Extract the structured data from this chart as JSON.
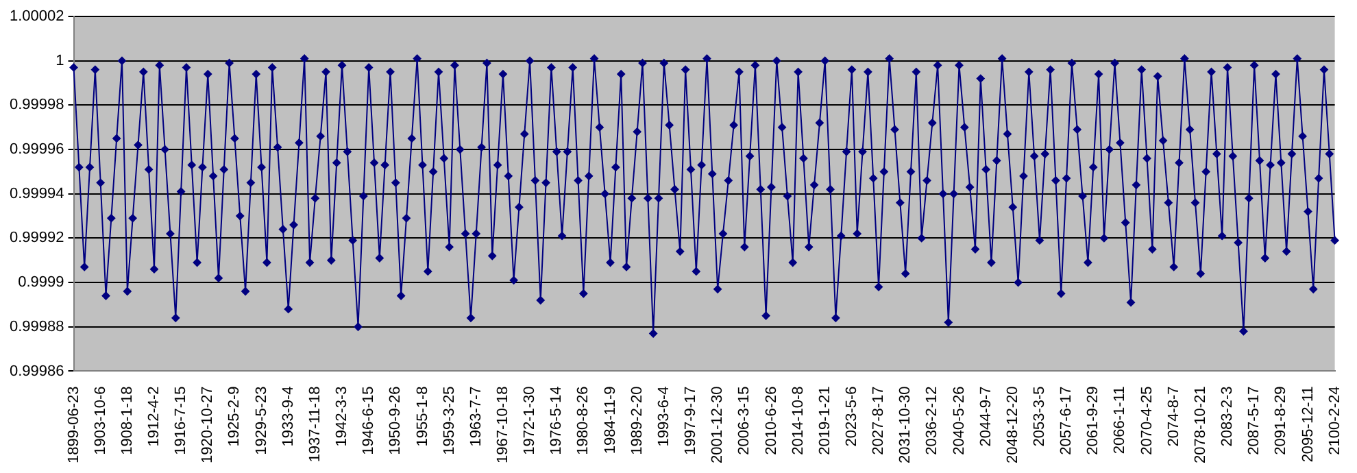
{
  "chart_data": {
    "type": "line",
    "categories": [
      "1899-06-23",
      null,
      null,
      null,
      null,
      "1903-10-6",
      null,
      null,
      null,
      null,
      "1908-1-18",
      null,
      null,
      null,
      null,
      "1912-4-2",
      null,
      null,
      null,
      null,
      "1916-7-15",
      null,
      null,
      null,
      null,
      "1920-10-27",
      null,
      null,
      null,
      null,
      "1925-2-9",
      null,
      null,
      null,
      null,
      "1929-5-23",
      null,
      null,
      null,
      null,
      "1933-9-4",
      null,
      null,
      null,
      null,
      "1937-11-18",
      null,
      null,
      null,
      null,
      "1942-3-3",
      null,
      null,
      null,
      null,
      "1946-6-15",
      null,
      null,
      null,
      null,
      "1950-9-26",
      null,
      null,
      null,
      null,
      "1955-1-8",
      null,
      null,
      null,
      null,
      "1959-3-25",
      null,
      null,
      null,
      null,
      "1963-7-7",
      null,
      null,
      null,
      null,
      "1967-10-18",
      null,
      null,
      null,
      null,
      "1972-1-30",
      null,
      null,
      null,
      null,
      "1976-5-14",
      null,
      null,
      null,
      null,
      "1980-8-26",
      null,
      null,
      null,
      null,
      "1984-11-9",
      null,
      null,
      null,
      null,
      "1989-2-20",
      null,
      null,
      null,
      null,
      "1993-6-4",
      null,
      null,
      null,
      null,
      "1997-9-17",
      null,
      null,
      null,
      null,
      "2001-12-30",
      null,
      null,
      null,
      null,
      "2006-3-15",
      null,
      null,
      null,
      null,
      "2010-6-26",
      null,
      null,
      null,
      null,
      "2014-10-8",
      null,
      null,
      null,
      null,
      "2019-1-21",
      null,
      null,
      null,
      null,
      "2023-5-6",
      null,
      null,
      null,
      null,
      "2027-8-17",
      null,
      null,
      null,
      null,
      "2031-10-30",
      null,
      null,
      null,
      null,
      "2036-2-12",
      null,
      null,
      null,
      null,
      "2040-5-26",
      null,
      null,
      null,
      null,
      "2044-9-7",
      null,
      null,
      null,
      null,
      "2048-12-20",
      null,
      null,
      null,
      null,
      "2053-3-5",
      null,
      null,
      null,
      null,
      "2057-6-17",
      null,
      null,
      null,
      null,
      "2061-9-29",
      null,
      null,
      null,
      null,
      "2066-1-11",
      null,
      null,
      null,
      null,
      "2070-4-25",
      null,
      null,
      null,
      null,
      "2074-8-7",
      null,
      null,
      null,
      null,
      "2078-10-21",
      null,
      null,
      null,
      null,
      "2083-2-3",
      null,
      null,
      null,
      null,
      "2087-5-17",
      null,
      null,
      null,
      null,
      "2091-8-29",
      null,
      null,
      null,
      null,
      "2095-12-11",
      null,
      null,
      null,
      null,
      "2100-2-24"
    ],
    "series": [
      {
        "color": "#000080",
        "values": [
          0.999997,
          0.999952,
          0.999907,
          0.999952,
          0.999996,
          0.999945,
          0.999894,
          0.999929,
          0.999965,
          1.0,
          0.999896,
          0.999929,
          0.999962,
          0.999995,
          0.999951,
          0.999906,
          0.999998,
          0.99996,
          0.999922,
          0.999884,
          0.999941,
          0.999997,
          0.999953,
          0.999909,
          0.999952,
          0.999994,
          0.999948,
          0.999902,
          0.999951,
          0.999999,
          0.999965,
          0.99993,
          0.999896,
          0.999945,
          0.999994,
          0.999952,
          0.999909,
          0.999997,
          0.999961,
          0.999924,
          0.999888,
          0.999926,
          0.999963,
          1.000001,
          0.999909,
          0.999938,
          0.999966,
          0.999995,
          0.99991,
          0.999954,
          0.999998,
          0.999959,
          0.999919,
          0.99988,
          0.999939,
          0.999997,
          0.999954,
          0.999911,
          0.999953,
          0.999995,
          0.999945,
          0.999894,
          0.999929,
          0.999965,
          1.000001,
          0.999953,
          0.999905,
          0.99995,
          0.999995,
          0.999956,
          0.999916,
          0.999998,
          0.99996,
          0.999922,
          0.999884,
          0.999922,
          0.999961,
          0.999999,
          0.999912,
          0.999953,
          0.999994,
          0.999948,
          0.999901,
          0.999934,
          0.999967,
          1.0,
          0.999946,
          0.999892,
          0.999945,
          0.999997,
          0.999959,
          0.999921,
          0.999959,
          0.999997,
          0.999946,
          0.999895,
          0.999948,
          1.000001,
          0.99997,
          0.99994,
          0.999909,
          0.999952,
          0.999994,
          0.999907,
          0.999938,
          0.999968,
          0.999999,
          0.999938,
          0.999877,
          0.999938,
          0.999999,
          0.999971,
          0.999942,
          0.999914,
          0.999996,
          0.999951,
          0.999905,
          0.999953,
          1.000001,
          0.999949,
          0.999897,
          0.999922,
          0.999946,
          0.999971,
          0.999995,
          0.999916,
          0.999957,
          0.999998,
          0.999942,
          0.999885,
          0.999943,
          1.0,
          0.99997,
          0.999939,
          0.999909,
          0.999995,
          0.999956,
          0.999916,
          0.999944,
          0.999972,
          1.0,
          0.999942,
          0.999884,
          0.999921,
          0.999959,
          0.999996,
          0.999922,
          0.999959,
          0.999995,
          0.999947,
          0.999898,
          0.99995,
          1.000001,
          0.999969,
          0.999936,
          0.999904,
          0.99995,
          0.999995,
          0.99992,
          0.999946,
          0.999972,
          0.999998,
          0.99994,
          0.999882,
          0.99994,
          0.999998,
          0.99997,
          0.999943,
          0.999915,
          0.999992,
          0.999951,
          0.999909,
          0.999955,
          1.000001,
          0.999967,
          0.999934,
          0.9999,
          0.999948,
          0.999995,
          0.999957,
          0.999919,
          0.999958,
          0.999996,
          0.999946,
          0.999895,
          0.999947,
          0.999999,
          0.999969,
          0.999939,
          0.999909,
          0.999952,
          0.999994,
          0.99992,
          0.99996,
          0.999999,
          0.999963,
          0.999927,
          0.999891,
          0.999944,
          0.999996,
          0.999956,
          0.999915,
          0.999993,
          0.999964,
          0.999936,
          0.999907,
          0.999954,
          1.000001,
          0.999969,
          0.999936,
          0.999904,
          0.99995,
          0.999995,
          0.999958,
          0.999921,
          0.999997,
          0.999957,
          0.999918,
          0.999878,
          0.999938,
          0.999998,
          0.999955,
          0.999911,
          0.999953,
          0.999994,
          0.999954,
          0.999914,
          0.999958,
          1.000001,
          0.999966,
          0.999932,
          0.999897,
          0.999947,
          0.999996,
          0.999958,
          0.999919
        ]
      }
    ],
    "ylim": [
      0.99986,
      1.00002
    ],
    "yticks": [
      0.99986,
      0.99988,
      0.9999,
      0.99992,
      0.99994,
      0.99996,
      0.99998,
      1,
      1.00002
    ],
    "grid": "y",
    "marker": "diamond",
    "line_style": "solid",
    "legend": false
  }
}
